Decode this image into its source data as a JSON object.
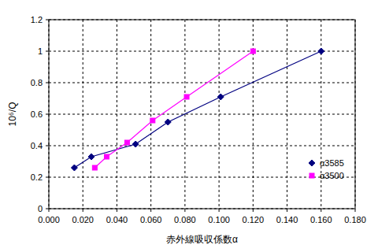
{
  "chart_data": {
    "type": "line",
    "x_label": "赤外線吸収係数α",
    "y_label": "10⁶/Q",
    "series": [
      {
        "name": "α3585",
        "color": "#000080",
        "marker": "diamond",
        "line_style": "solid",
        "x": [
          0.015,
          0.025,
          0.051,
          0.07,
          0.101,
          0.16
        ],
        "values": [
          0.26,
          0.33,
          0.41,
          0.55,
          0.71,
          1.0
        ]
      },
      {
        "name": "α3500",
        "color": "#ff00ff",
        "marker": "square",
        "line_style": "solid",
        "x": [
          0.027,
          0.034,
          0.046,
          0.061,
          0.081,
          0.12
        ],
        "values": [
          0.26,
          0.33,
          0.42,
          0.56,
          0.71,
          1.0
        ]
      }
    ],
    "xlim": [
      0,
      0.18
    ],
    "xticks": [
      {
        "value": 0,
        "label": "0.000"
      },
      {
        "value": 0.02,
        "label": "0.020"
      },
      {
        "value": 0.04,
        "label": "0.040"
      },
      {
        "value": 0.06,
        "label": "0.060"
      },
      {
        "value": 0.08,
        "label": "0.080"
      },
      {
        "value": 0.1,
        "label": "0.100"
      },
      {
        "value": 0.12,
        "label": "0.120"
      },
      {
        "value": 0.14,
        "label": "0.140"
      },
      {
        "value": 0.16,
        "label": "0.160"
      },
      {
        "value": 0.18,
        "label": "0.180"
      }
    ],
    "ylim": [
      0,
      1.2
    ],
    "yticks": [
      0,
      0.2,
      0.4,
      0.6,
      0.8,
      1,
      1.2
    ],
    "grid": true,
    "legend": "lower-right"
  }
}
